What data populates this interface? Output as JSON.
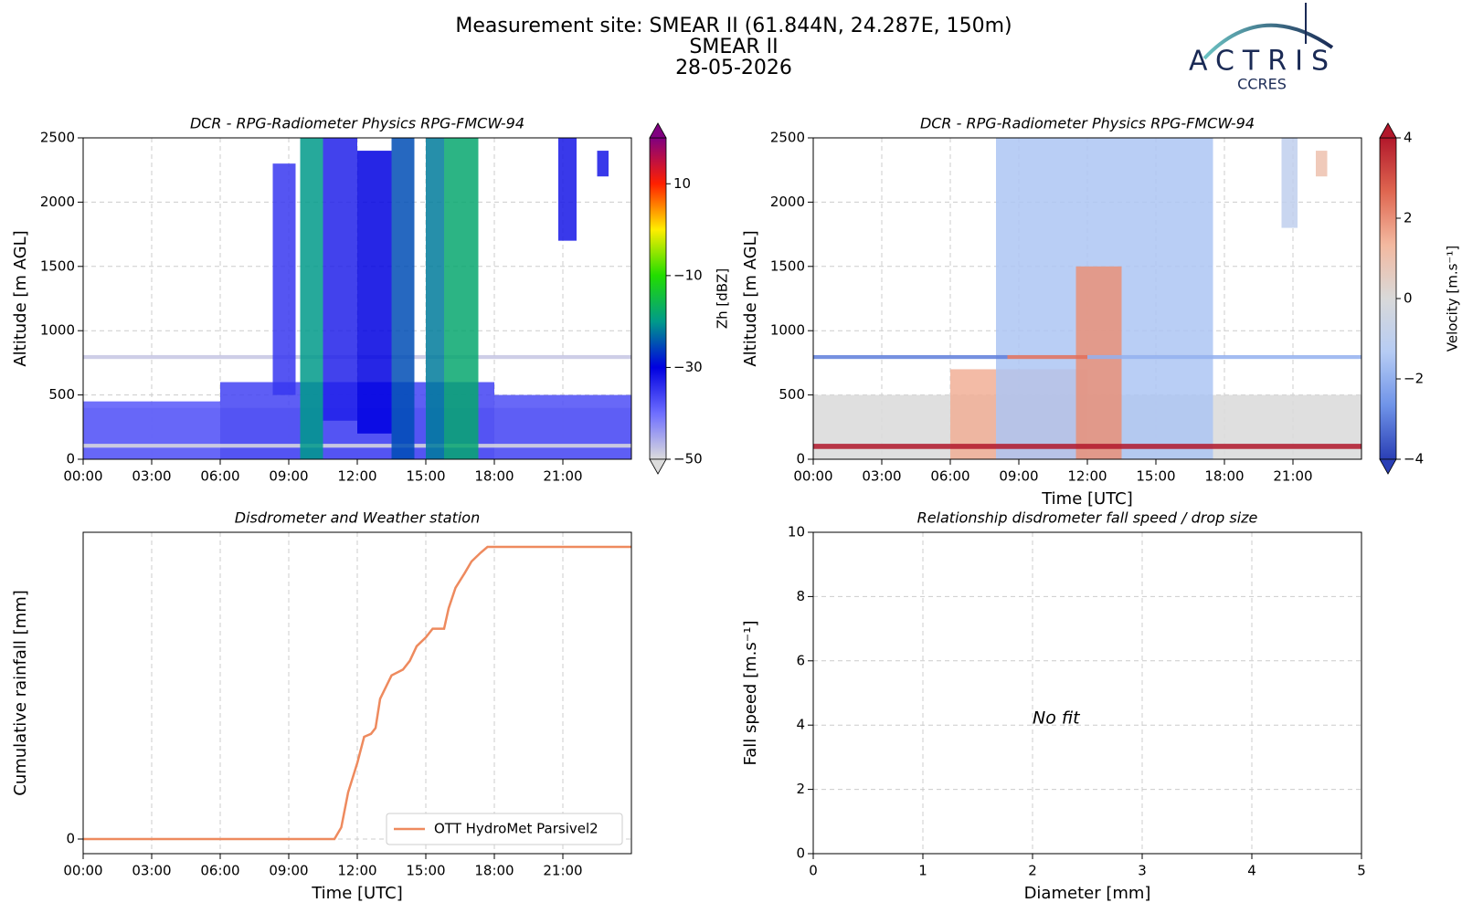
{
  "header": {
    "lines": [
      "Measurement site: SMEAR II (61.844N, 24.287E, 150m)",
      "SMEAR II",
      "28-05-2026"
    ],
    "logo": "ACTRIS",
    "logo_sub": "CCRES"
  },
  "chart_data": [
    {
      "type": "heatmap",
      "title": "DCR - RPG-Radiometer Physics RPG-FMCW-94",
      "ylabel": "Altitude [m AGL]",
      "xlim": [
        0,
        24
      ],
      "xticks": [
        {
          "value": 0,
          "label": "00:00"
        },
        {
          "value": 3,
          "label": "03:00"
        },
        {
          "value": 6,
          "label": "06:00"
        },
        {
          "value": 9,
          "label": "09:00"
        },
        {
          "value": 12,
          "label": "12:00"
        },
        {
          "value": 15,
          "label": "15:00"
        },
        {
          "value": 18,
          "label": "18:00"
        },
        {
          "value": 21,
          "label": "21:00"
        }
      ],
      "ylim": [
        0,
        2500
      ],
      "yticks": [
        0,
        500,
        1000,
        1500,
        2000,
        2500
      ],
      "grid": true,
      "cells": [
        {
          "x0": 0,
          "x1": 24,
          "y0": 0,
          "y1": 400,
          "value": -46
        },
        {
          "x0": 0,
          "x1": 6,
          "y0": 0,
          "y1": 450,
          "value": -38
        },
        {
          "x0": 6,
          "x1": 18,
          "y0": 0,
          "y1": 600,
          "value": -36
        },
        {
          "x0": 18,
          "x1": 24,
          "y0": 0,
          "y1": 500,
          "value": -37
        },
        {
          "x0": 0,
          "x1": 24,
          "y0": 90,
          "y1": 120,
          "value": -50
        },
        {
          "x0": 0,
          "x1": 24,
          "y0": 780,
          "y1": 810,
          "value": -48
        },
        {
          "x0": 8.3,
          "x1": 9.3,
          "y0": 500,
          "y1": 2300,
          "value": -35
        },
        {
          "x0": 9.5,
          "x1": 10.5,
          "y0": 0,
          "y1": 2500,
          "value": -20
        },
        {
          "x0": 10.5,
          "x1": 12,
          "y0": 300,
          "y1": 2500,
          "value": -33
        },
        {
          "x0": 12,
          "x1": 13.5,
          "y0": 200,
          "y1": 2400,
          "value": -30
        },
        {
          "x0": 13.5,
          "x1": 14.5,
          "y0": 0,
          "y1": 2500,
          "value": -25
        },
        {
          "x0": 15,
          "x1": 15.8,
          "y0": 0,
          "y1": 2500,
          "value": -22
        },
        {
          "x0": 15.8,
          "x1": 17.3,
          "y0": 0,
          "y1": 2500,
          "value": -18
        },
        {
          "x0": 20.8,
          "x1": 21.6,
          "y0": 1700,
          "y1": 2500,
          "value": -32
        },
        {
          "x0": 22.5,
          "x1": 23,
          "y0": 2200,
          "y1": 2400,
          "value": -32
        }
      ],
      "colorbar": {
        "label": "Zh [dBZ]",
        "lim": [
          -50,
          20
        ],
        "ticks": [
          {
            "value": 10,
            "label": "10"
          },
          {
            "value": -10,
            "label": "−10"
          },
          {
            "value": -30,
            "label": "−30"
          },
          {
            "value": -50,
            "label": "−50"
          }
        ],
        "colors": [
          "#dcdcdc",
          "#6e6eff",
          "#0000e0",
          "#009a8a",
          "#22dd00",
          "#ffee00",
          "#ff2000",
          "#800080"
        ]
      }
    },
    {
      "type": "heatmap",
      "title": "DCR - RPG-Radiometer Physics RPG-FMCW-94",
      "ylabel": "Altitude [m AGL]",
      "xlabel": "Time [UTC]",
      "xlim": [
        0,
        24
      ],
      "xticks": [
        {
          "value": 0,
          "label": "00:00"
        },
        {
          "value": 3,
          "label": "03:00"
        },
        {
          "value": 6,
          "label": "06:00"
        },
        {
          "value": 9,
          "label": "09:00"
        },
        {
          "value": 12,
          "label": "12:00"
        },
        {
          "value": 15,
          "label": "15:00"
        },
        {
          "value": 18,
          "label": "18:00"
        },
        {
          "value": 21,
          "label": "21:00"
        }
      ],
      "ylim": [
        0,
        2500
      ],
      "yticks": [
        0,
        500,
        1000,
        1500,
        2000,
        2500
      ],
      "grid": true,
      "cells": [
        {
          "x0": 0,
          "x1": 24,
          "y0": 0,
          "y1": 500,
          "value": 0
        },
        {
          "x0": 6,
          "x1": 12,
          "y0": 0,
          "y1": 700,
          "value": 1.5
        },
        {
          "x0": 8,
          "x1": 17.5,
          "y0": 0,
          "y1": 2500,
          "value": -1.5
        },
        {
          "x0": 11.5,
          "x1": 13.5,
          "y0": 0,
          "y1": 1500,
          "value": 2
        },
        {
          "x0": 0,
          "x1": 8.5,
          "y0": 780,
          "y1": 810,
          "value": -3
        },
        {
          "x0": 8.5,
          "x1": 12,
          "y0": 780,
          "y1": 810,
          "value": 2.5
        },
        {
          "x0": 12,
          "x1": 24,
          "y0": 780,
          "y1": 810,
          "value": -2
        },
        {
          "x0": 0,
          "x1": 24,
          "y0": 80,
          "y1": 120,
          "value": 4
        },
        {
          "x0": 20.5,
          "x1": 21.2,
          "y0": 1800,
          "y1": 2500,
          "value": -1
        },
        {
          "x0": 22,
          "x1": 22.5,
          "y0": 2200,
          "y1": 2400,
          "value": 1
        }
      ],
      "colorbar": {
        "label": "Velocity [m.s⁻¹]",
        "lim": [
          -4,
          4
        ],
        "ticks": [
          4,
          2,
          0,
          {
            "value": -2,
            "label": "−2"
          },
          {
            "value": -4,
            "label": "−4"
          }
        ],
        "colors": [
          "#2a3fb5",
          "#6f93e8",
          "#b6ccf4",
          "#d9d9d9",
          "#f3b9a0",
          "#df6650",
          "#b2182b"
        ]
      }
    },
    {
      "type": "line",
      "title": "Disdrometer and Weather station",
      "ylabel": "Cumulative rainfall [mm]",
      "xlabel": "Time [UTC]",
      "xlim": [
        0,
        24
      ],
      "xticks": [
        {
          "value": 0,
          "label": "00:00"
        },
        {
          "value": 3,
          "label": "03:00"
        },
        {
          "value": 6,
          "label": "06:00"
        },
        {
          "value": 9,
          "label": "09:00"
        },
        {
          "value": 12,
          "label": "12:00"
        },
        {
          "value": 15,
          "label": "15:00"
        },
        {
          "value": 18,
          "label": "18:00"
        },
        {
          "value": 21,
          "label": "21:00"
        }
      ],
      "ylim": [
        -0.5,
        10.5
      ],
      "yticks": [
        0
      ],
      "grid": true,
      "legend": "lower right",
      "series": [
        {
          "name": "OTT HydroMet Parsivel2",
          "color": "#ee8a5e",
          "x": [
            0,
            11.0,
            11.3,
            11.6,
            12.0,
            12.3,
            12.6,
            12.8,
            13.0,
            13.5,
            14.0,
            14.3,
            14.6,
            15.0,
            15.3,
            15.8,
            16.0,
            16.3,
            16.7,
            17.0,
            17.4,
            17.7,
            24
          ],
          "values": [
            0,
            0,
            0.4,
            1.6,
            2.6,
            3.5,
            3.6,
            3.8,
            4.8,
            5.6,
            5.8,
            6.1,
            6.6,
            6.9,
            7.2,
            7.2,
            7.9,
            8.6,
            9.1,
            9.5,
            9.8,
            10,
            10
          ]
        }
      ]
    },
    {
      "type": "scatter",
      "title": "Relationship disdrometer fall speed / drop size",
      "ylabel": "Fall speed [m.s⁻¹]",
      "xlabel": "Diameter [mm]",
      "xlim": [
        0,
        5
      ],
      "xticks": [
        0,
        1,
        2,
        3,
        4,
        5
      ],
      "ylim": [
        0,
        10
      ],
      "yticks": [
        0,
        2,
        4,
        6,
        8,
        10
      ],
      "grid": true,
      "annotation": "No fit"
    }
  ]
}
